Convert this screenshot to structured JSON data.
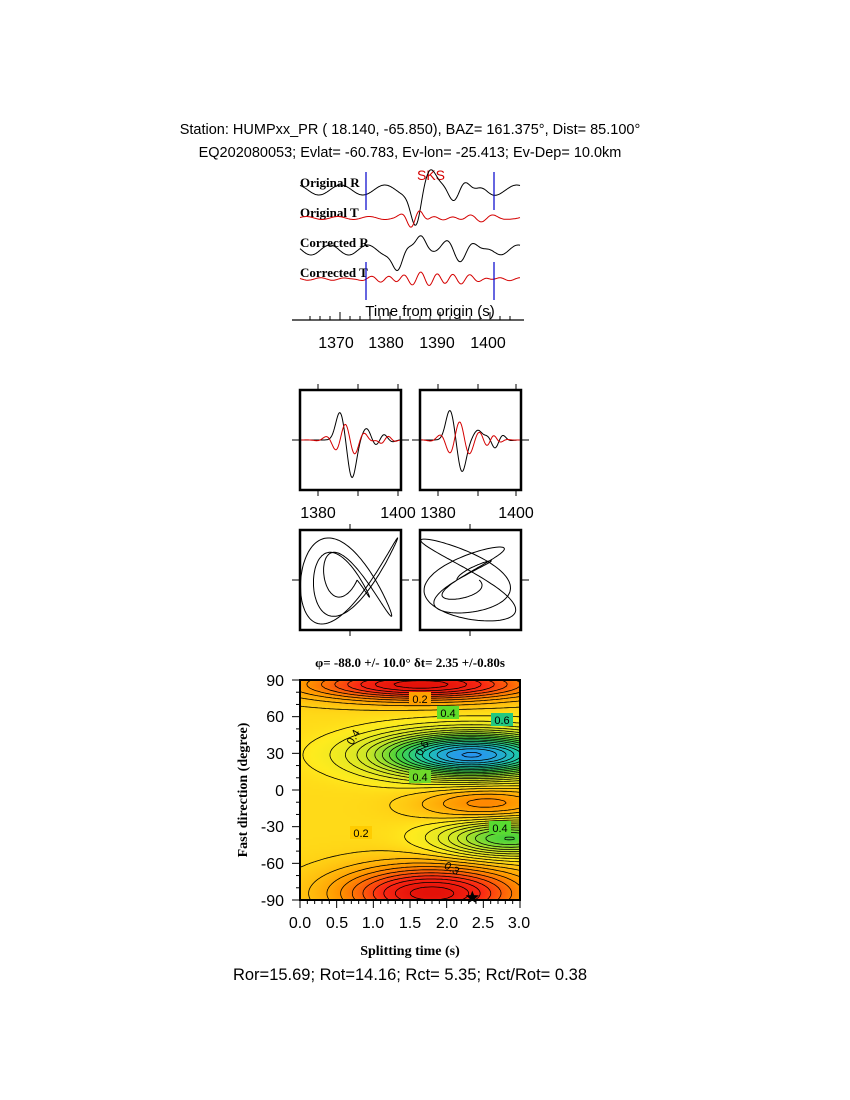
{
  "header": {
    "station_line": "Station: HUMPxx_PR (  18.140,  -65.850), BAZ=  161.375°, Dist=   85.100°",
    "event_line": "EQ202080053; Evlat= -60.783, Ev-lon= -25.413; Ev-Dep= 10.0km"
  },
  "traces": {
    "labels": [
      "Original R",
      "Original T",
      "Corrected R",
      "Corrected T"
    ],
    "phase_label": "SKS",
    "axis_title": "Time from origin (s)",
    "x_ticks": [
      "1370",
      "1380",
      "1390",
      "1400"
    ],
    "colors": {
      "radial": "#000000",
      "transverse": "#d40000",
      "window": "#0000cc"
    }
  },
  "waveform_panels": {
    "left_ticks": [
      "1380",
      "1400"
    ],
    "right_ticks": [
      "1380",
      "1400"
    ]
  },
  "grid_search": {
    "title_phi": "φ= -88.0 +/- 10.0° δt= 2.35 +/-0.80s",
    "contour_labels": [
      "0.2",
      "0.4",
      "0.6",
      "0.4",
      "0.6",
      "0.4",
      "0.2",
      "0.4",
      "0.3"
    ],
    "ylabel": "Fast direction (degree)",
    "xlabel": "Splitting time (s)",
    "y_ticks": [
      "90",
      "60",
      "30",
      "0",
      "-30",
      "-60",
      "-90"
    ],
    "x_ticks": [
      "0.0",
      "0.5",
      "1.0",
      "1.5",
      "2.0",
      "2.5",
      "3.0"
    ]
  },
  "footer": {
    "ratio_line": "Ror=15.69; Rot=14.16; Rct= 5.35; Rct/Rot= 0.38"
  },
  "chart_data": [
    {
      "type": "line",
      "title": "",
      "xlabel": "Time from origin (s)",
      "xlim": [
        1362,
        1406
      ],
      "series": [
        {
          "name": "Original R",
          "color": "#000000"
        },
        {
          "name": "Original T",
          "color": "#d40000"
        },
        {
          "name": "Corrected R",
          "color": "#000000"
        },
        {
          "name": "Corrected T",
          "color": "#d40000"
        }
      ],
      "analysis_window_s": [
        1376,
        1401.5
      ],
      "phase": {
        "name": "SKS",
        "time_s": 1386
      }
    },
    {
      "type": "heatmap",
      "title": "φ= -88.0 +/- 10.0° δt= 2.35 +/-0.80s",
      "xlabel": "Splitting time (s)",
      "ylabel": "Fast direction (degree)",
      "xlim": [
        0,
        3
      ],
      "ylim": [
        -90,
        90
      ],
      "best_fit": {
        "splitting_time_s": 2.35,
        "fast_direction_deg": -88.0
      }
    }
  ]
}
